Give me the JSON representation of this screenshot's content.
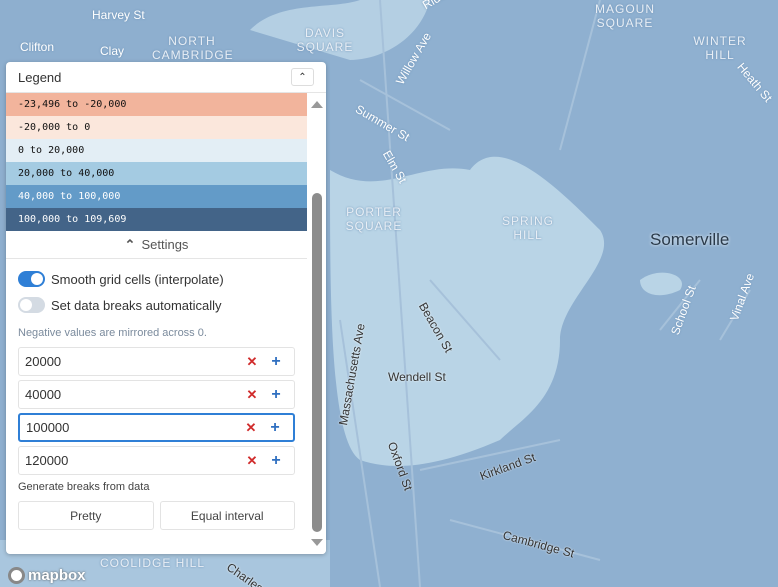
{
  "map": {
    "labels": [
      {
        "text": "Harvey St",
        "cls": ""
      },
      {
        "text": "Clifton",
        "cls": ""
      },
      {
        "text": "Clay",
        "cls": ""
      },
      {
        "text": "NORTH CAMBRIDGE",
        "cls": "area"
      },
      {
        "text": "DAVIS SQUARE",
        "cls": "area"
      },
      {
        "text": "Ridder Ave",
        "cls": ""
      },
      {
        "text": "MAGOUN SQUARE",
        "cls": "area"
      },
      {
        "text": "WINTER HILL",
        "cls": "area"
      },
      {
        "text": "Heath St",
        "cls": ""
      },
      {
        "text": "Willow Ave",
        "cls": ""
      },
      {
        "text": "Summer St",
        "cls": ""
      },
      {
        "text": "Elm St",
        "cls": ""
      },
      {
        "text": "PORTER SQUARE",
        "cls": "area"
      },
      {
        "text": "SPRING HILL",
        "cls": "area"
      },
      {
        "text": "Somerville",
        "cls": "city"
      },
      {
        "text": "Beacon St",
        "cls": "dark"
      },
      {
        "text": "School St",
        "cls": ""
      },
      {
        "text": "Vinal Ave",
        "cls": ""
      },
      {
        "text": "Massachusetts Ave",
        "cls": "dark"
      },
      {
        "text": "Wendell St",
        "cls": "dark"
      },
      {
        "text": "Oxford St",
        "cls": "dark"
      },
      {
        "text": "Kirkland St",
        "cls": "dark"
      },
      {
        "text": "Cambridge St",
        "cls": "dark"
      },
      {
        "text": "Charles Ri",
        "cls": "dark"
      },
      {
        "text": "COOLIDGE HILL",
        "cls": "area"
      }
    ],
    "attribution": "mapbox"
  },
  "legend": {
    "title": "Legend",
    "rows": [
      {
        "label": "-23,496 to -20,000",
        "color": "#f2b49c",
        "text": "#111"
      },
      {
        "label": "-20,000 to 0",
        "color": "#fbe7dc",
        "text": "#111"
      },
      {
        "label": "0 to 20,000",
        "color": "#e3eef5",
        "text": "#111"
      },
      {
        "label": "20,000 to 40,000",
        "color": "#a4cbe2",
        "text": "#111"
      },
      {
        "label": "40,000 to 100,000",
        "color": "#639bc8",
        "text": "#fff"
      },
      {
        "label": "100,000 to 109,609",
        "color": "#436488",
        "text": "#fff"
      }
    ]
  },
  "settings": {
    "label": "Settings",
    "smooth": {
      "label": "Smooth grid cells (interpolate)",
      "on": true
    },
    "auto": {
      "label": "Set data breaks automatically",
      "on": false
    },
    "note": "Negative values are mirrored across 0.",
    "breaks": [
      "20000",
      "40000",
      "100000",
      "120000"
    ],
    "generate_label": "Generate breaks from data",
    "pretty": "Pretty",
    "equal": "Equal interval"
  }
}
